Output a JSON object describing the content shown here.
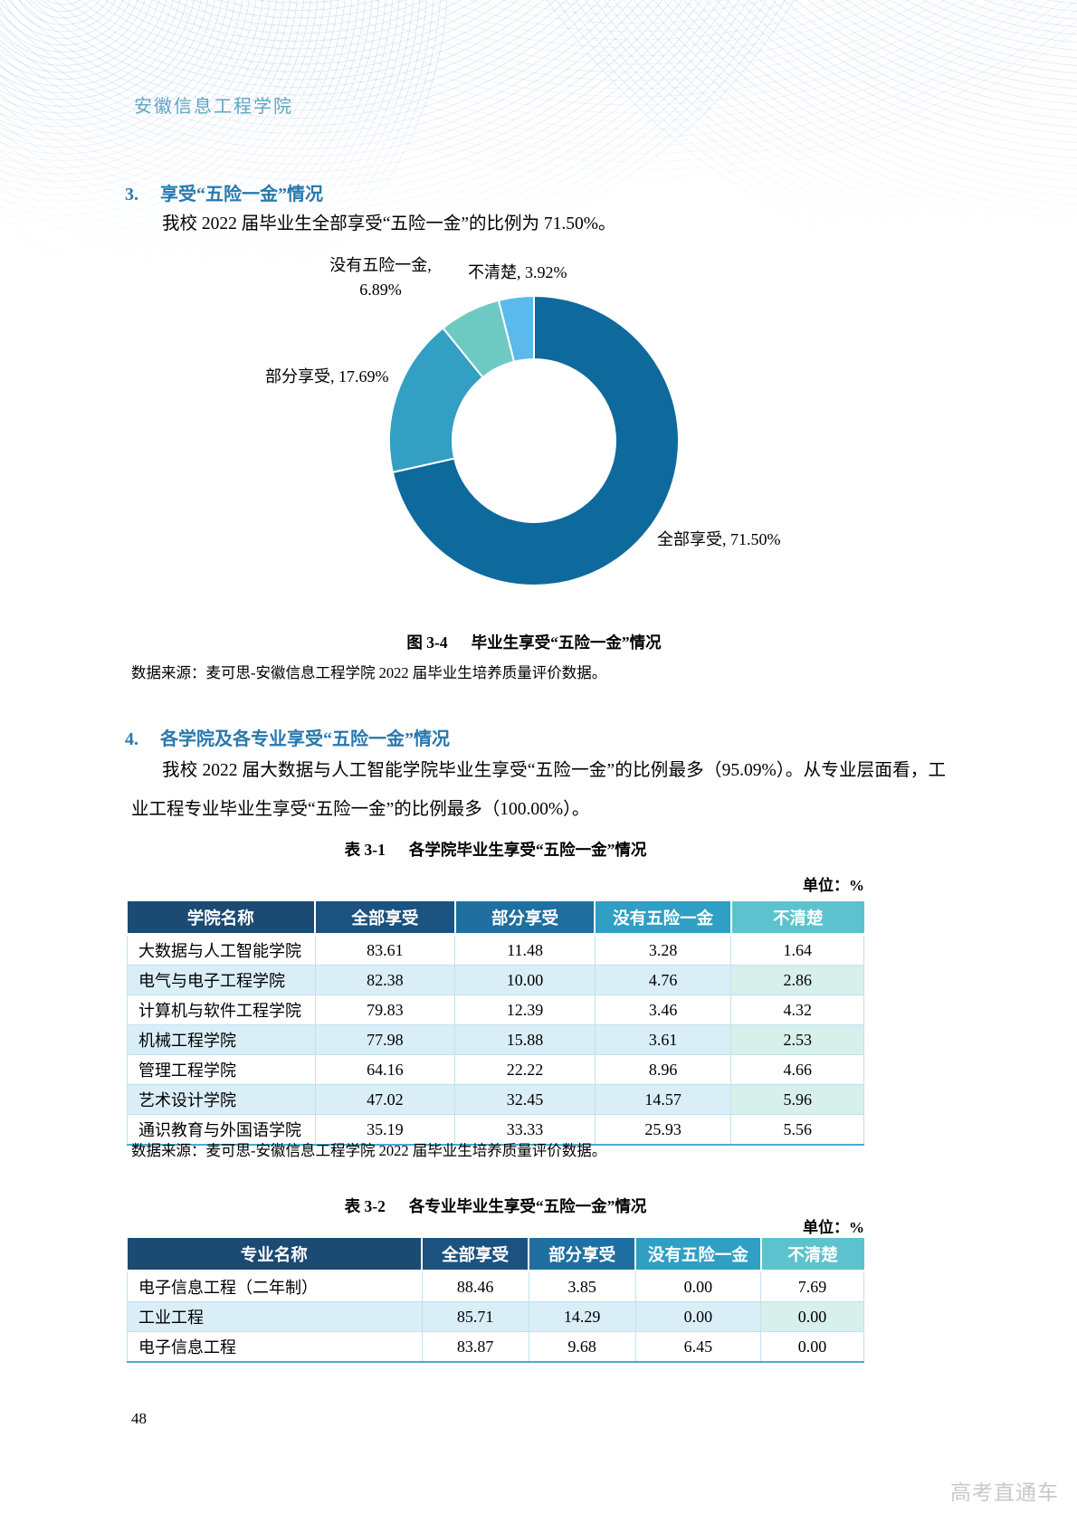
{
  "page": {
    "institution": "安徽信息工程学院",
    "page_number": "48",
    "watermark": "高考直通车"
  },
  "section3": {
    "number": "3.",
    "title": "享受“五险一金”情况",
    "paragraph": "我校 2022 届毕业生全部享受“五险一金”的比例为 71.50%。",
    "figure_caption_label": "图 3-4",
    "figure_caption": "毕业生享受“五险一金”情况",
    "data_source": "数据来源：麦可思-安徽信息工程学院 2022 届毕业生培养质量评价数据。"
  },
  "chart_data": {
    "type": "pie",
    "subtype": "donut",
    "title": "毕业生享受“五险一金”情况",
    "start_angle_deg": 0,
    "direction": "clockwise",
    "categories": [
      "全部享受",
      "部分享受",
      "没有五险一金",
      "不清楚"
    ],
    "values": [
      71.5,
      17.69,
      6.89,
      3.92
    ],
    "slices": [
      {
        "label": "全部享受",
        "value": 71.5,
        "color": "#0e699c"
      },
      {
        "label": "部分享受",
        "value": 17.69,
        "color": "#339fc2"
      },
      {
        "label": "没有五险一金",
        "value": 6.89,
        "color": "#6fc9c3"
      },
      {
        "label": "不清楚",
        "value": 3.92,
        "color": "#5bb9eb"
      }
    ],
    "label_format": "{label}, {value}%"
  },
  "section4": {
    "number": "4.",
    "title": "各学院及各专业享受“五险一金”情况",
    "paragraph": "我校 2022 届大数据与人工智能学院毕业生享受“五险一金”的比例最多（95.09%）。从专业层面看，工业工程专业毕业生享受“五险一金”的比例最多（100.00%）。"
  },
  "table1": {
    "caption_label": "表 3-1",
    "caption": "各学院毕业生享受“五险一金”情况",
    "unit": "单位：%",
    "headers": [
      "学院名称",
      "全部享受",
      "部分享受",
      "没有五险一金",
      "不清楚"
    ],
    "rows": [
      [
        "大数据与人工智能学院",
        "83.61",
        "11.48",
        "3.28",
        "1.64"
      ],
      [
        "电气与电子工程学院",
        "82.38",
        "10.00",
        "4.76",
        "2.86"
      ],
      [
        "计算机与软件工程学院",
        "79.83",
        "12.39",
        "3.46",
        "4.32"
      ],
      [
        "机械工程学院",
        "77.98",
        "15.88",
        "3.61",
        "2.53"
      ],
      [
        "管理工程学院",
        "64.16",
        "22.22",
        "8.96",
        "4.66"
      ],
      [
        "艺术设计学院",
        "47.02",
        "32.45",
        "14.57",
        "5.96"
      ],
      [
        "通识教育与外国语学院",
        "35.19",
        "33.33",
        "25.93",
        "5.56"
      ]
    ],
    "data_source": "数据来源：麦可思-安徽信息工程学院 2022 届毕业生培养质量评价数据。"
  },
  "table2": {
    "caption_label": "表 3-2",
    "caption": "各专业毕业生享受“五险一金”情况",
    "unit": "单位：%",
    "headers": [
      "专业名称",
      "全部享受",
      "部分享受",
      "没有五险一金",
      "不清楚"
    ],
    "rows": [
      [
        "电子信息工程（二年制）",
        "88.46",
        "3.85",
        "0.00",
        "7.69"
      ],
      [
        "工业工程",
        "85.71",
        "14.29",
        "0.00",
        "0.00"
      ],
      [
        "电子信息工程",
        "83.87",
        "9.68",
        "6.45",
        "0.00"
      ]
    ]
  },
  "colors": {
    "heading_blue": "#2878ae",
    "institution_blue": "#5fa5c4",
    "table_header": [
      "#1b4a73",
      "#1c5280",
      "#1f6fa0",
      "#2f9fc3",
      "#5cc3ce"
    ],
    "row_tint": "#daeef8",
    "row_tint_last": "#d7f0ec",
    "table_border": "#bfe2f1",
    "table_bottom_border": "#45add3",
    "pattern_blue": "#b6cde9",
    "watermark_gray": "#c8c8c8"
  }
}
